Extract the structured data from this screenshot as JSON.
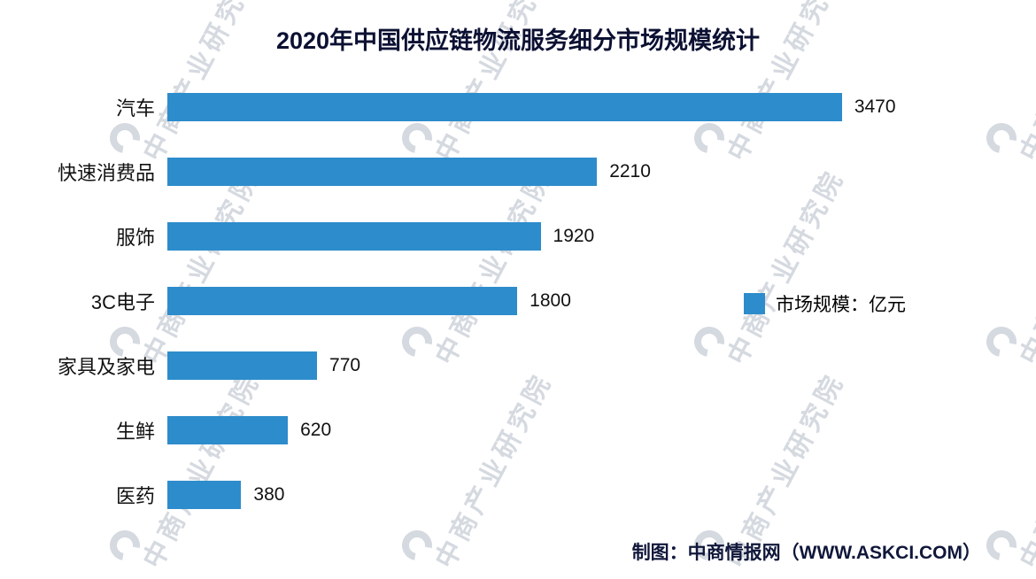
{
  "title": "2020年中国供应链物流服务细分市场规模统计",
  "chart_data": {
    "type": "bar",
    "orientation": "horizontal",
    "title": "2020年中国供应链物流服务细分市场规模统计",
    "categories": [
      "汽车",
      "快速消费品",
      "服饰",
      "3C电子",
      "家具及家电",
      "生鲜",
      "医药"
    ],
    "values": [
      3470,
      2210,
      1920,
      1800,
      770,
      620,
      380
    ],
    "value_labels": [
      "3470",
      "2210",
      "1920",
      "1800",
      "770",
      "620",
      "380"
    ],
    "xlim": [
      0,
      4400
    ],
    "bar_color": "#2d8ccb",
    "grid": false,
    "legend_position": "middle-right",
    "legend_entries": [
      "市场规模：亿元"
    ]
  },
  "legend": {
    "label": "市场规模：亿元",
    "color": "#2d8ccb"
  },
  "footer": {
    "credit": "制图：中商情报网（WWW.ASKCI.COM）"
  },
  "watermark": {
    "text": "中商产业研究院"
  },
  "colors": {
    "bar": "#2d8ccb",
    "title_text": "#0c1133",
    "footer_text": "#10173a",
    "watermark": "rgba(125,138,158,0.32)"
  }
}
